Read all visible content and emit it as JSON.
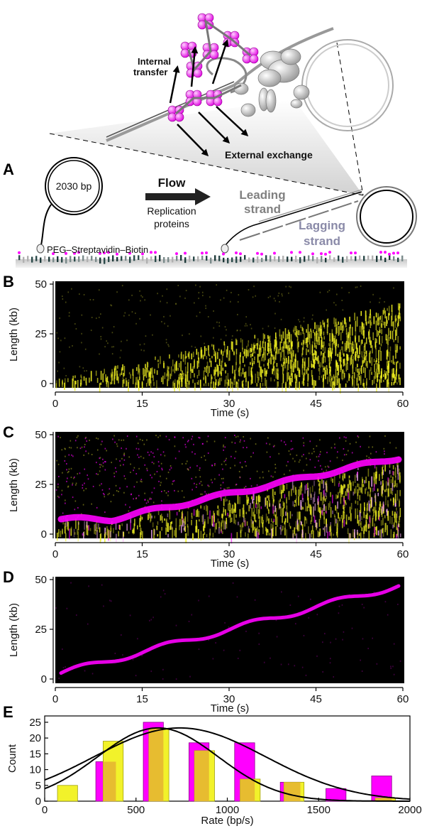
{
  "panel_a": {
    "letter": "A",
    "plasmid_label": "2030 bp",
    "flow_label": "Flow",
    "replication_label_1": "Replication",
    "replication_label_2": "proteins",
    "leading_label_1": "Leading",
    "leading_label_2": "strand",
    "lagging_label_1": "Lagging",
    "lagging_label_2": "strand",
    "surface_label": "PEG–Streptavidin–Biotin",
    "internal_label_1": "Internal",
    "internal_label_2": "transfer",
    "external_label": "External exchange"
  },
  "colors": {
    "yellow": "#f0f020",
    "magenta": "#ff00ff",
    "orange_overlap": "#e6b830",
    "background_kymo": "#000000"
  },
  "kymographs": [
    {
      "letter": "B",
      "ylabel": "Length (kb)",
      "xlabel": "Time (s)",
      "yticks": [
        "0",
        "25",
        "50"
      ],
      "xticks": [
        "0",
        "15",
        "30",
        "45",
        "60"
      ],
      "channels": [
        "yellow"
      ]
    },
    {
      "letter": "C",
      "ylabel": "Length (kb)",
      "xlabel": "Time (s)",
      "yticks": [
        "0",
        "25",
        "50"
      ],
      "xticks": [
        "0",
        "15",
        "30",
        "45",
        "60"
      ],
      "channels": [
        "yellow",
        "magenta"
      ]
    },
    {
      "letter": "D",
      "ylabel": "Length (kb)",
      "xlabel": "Time (s)",
      "yticks": [
        "0",
        "25",
        "50"
      ],
      "xticks": [
        "0",
        "15",
        "30",
        "45",
        "60"
      ],
      "channels": [
        "magenta"
      ]
    }
  ],
  "chart_data": {
    "type": "bar",
    "letter": "E",
    "xlabel": "Rate (bp/s)",
    "ylabel": "Count",
    "xlim": [
      0,
      2000
    ],
    "ylim": [
      0,
      27
    ],
    "xticks": [
      "0",
      "500",
      "1000",
      "1500",
      "2000"
    ],
    "yticks": [
      "0",
      "5",
      "10",
      "15",
      "20",
      "25"
    ],
    "series": [
      {
        "color": "yellow",
        "bins": [
          {
            "x0": 70,
            "x1": 180,
            "count": 5
          },
          {
            "x0": 320,
            "x1": 430,
            "count": 19
          },
          {
            "x0": 570,
            "x1": 680,
            "count": 23
          },
          {
            "x0": 820,
            "x1": 930,
            "count": 16
          },
          {
            "x0": 1070,
            "x1": 1180,
            "count": 7
          },
          {
            "x0": 1310,
            "x1": 1420,
            "count": 6
          },
          {
            "x0": 1810,
            "x1": 1920,
            "count": 1
          }
        ]
      },
      {
        "color": "magenta",
        "bins": [
          {
            "x0": 280,
            "x1": 390,
            "count": 12.5
          },
          {
            "x0": 540,
            "x1": 650,
            "count": 25
          },
          {
            "x0": 790,
            "x1": 900,
            "count": 18.5
          },
          {
            "x0": 1040,
            "x1": 1150,
            "count": 18.5
          },
          {
            "x0": 1290,
            "x1": 1400,
            "count": 6
          },
          {
            "x0": 1540,
            "x1": 1650,
            "count": 4
          },
          {
            "x0": 1790,
            "x1": 1900,
            "count": 8
          }
        ]
      }
    ],
    "fits": [
      {
        "mean": 620,
        "sd": 330,
        "amp": 23.2
      },
      {
        "mean": 740,
        "sd": 470,
        "amp": 23.2
      }
    ]
  }
}
